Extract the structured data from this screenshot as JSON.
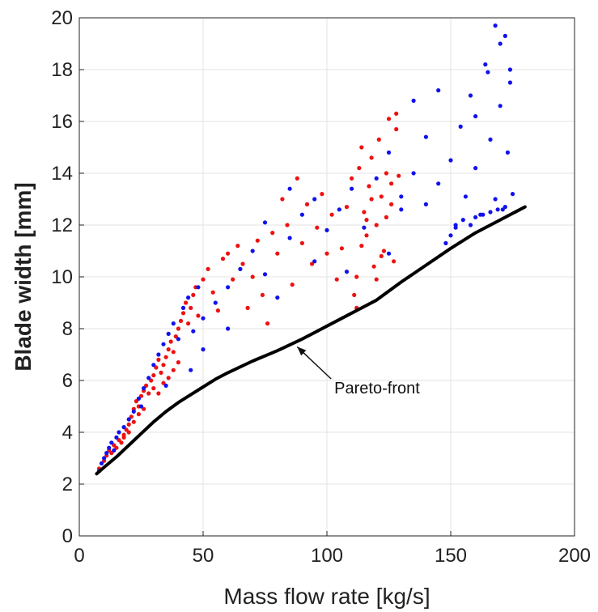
{
  "chart_data": {
    "type": "scatter",
    "title": "",
    "xlabel": "Mass flow rate [kg/s]",
    "ylabel": "Blade width [mm]",
    "xlim": [
      0,
      200
    ],
    "ylim": [
      0,
      20
    ],
    "xticks": [
      0,
      50,
      100,
      150,
      200
    ],
    "yticks": [
      0,
      2,
      4,
      6,
      8,
      10,
      12,
      14,
      16,
      18,
      20
    ],
    "grid": true,
    "colors": {
      "red": "#ee1111",
      "blue": "#1111ee",
      "front": "#000000"
    },
    "series": [
      {
        "color": "red",
        "points": [
          [
            8,
            2.6
          ],
          [
            10,
            2.9
          ],
          [
            11,
            3.1
          ],
          [
            12,
            3.3
          ],
          [
            13,
            3.2
          ],
          [
            14,
            3.5
          ],
          [
            15,
            3.4
          ],
          [
            16,
            3.7
          ],
          [
            17,
            3.6
          ],
          [
            18,
            3.9
          ],
          [
            19,
            4.1
          ],
          [
            20,
            4.3
          ],
          [
            21,
            4.6
          ],
          [
            22,
            4.9
          ],
          [
            23,
            5.2
          ],
          [
            24,
            5.0
          ],
          [
            25,
            5.4
          ],
          [
            26,
            5.6
          ],
          [
            27,
            5.8
          ],
          [
            28,
            5.5
          ],
          [
            29,
            6.0
          ],
          [
            30,
            6.2
          ],
          [
            31,
            6.5
          ],
          [
            32,
            6.8
          ],
          [
            33,
            6.3
          ],
          [
            34,
            6.6
          ],
          [
            35,
            6.9
          ],
          [
            36,
            7.2
          ],
          [
            37,
            7.5
          ],
          [
            38,
            7.1
          ],
          [
            39,
            7.7
          ],
          [
            40,
            8.0
          ],
          [
            41,
            8.3
          ],
          [
            42,
            8.6
          ],
          [
            43,
            9.0
          ],
          [
            44,
            8.2
          ],
          [
            45,
            8.8
          ],
          [
            46,
            9.3
          ],
          [
            47,
            9.6
          ],
          [
            48,
            8.5
          ],
          [
            50,
            9.9
          ],
          [
            52,
            10.3
          ],
          [
            54,
            9.4
          ],
          [
            56,
            8.7
          ],
          [
            58,
            10.7
          ],
          [
            60,
            10.9
          ],
          [
            62,
            9.9
          ],
          [
            64,
            11.2
          ],
          [
            66,
            10.5
          ],
          [
            68,
            8.8
          ],
          [
            70,
            10.0
          ],
          [
            72,
            11.4
          ],
          [
            74,
            9.3
          ],
          [
            76,
            8.2
          ],
          [
            78,
            11.7
          ],
          [
            80,
            10.9
          ],
          [
            82,
            13.0
          ],
          [
            84,
            12.0
          ],
          [
            86,
            9.7
          ],
          [
            88,
            13.8
          ],
          [
            90,
            11.3
          ],
          [
            92,
            12.8
          ],
          [
            94,
            10.5
          ],
          [
            96,
            11.9
          ],
          [
            98,
            13.2
          ],
          [
            100,
            10.9
          ],
          [
            102,
            12.4
          ],
          [
            104,
            9.9
          ],
          [
            106,
            11.1
          ],
          [
            108,
            12.7
          ],
          [
            110,
            13.8
          ],
          [
            111,
            9.3
          ],
          [
            112,
            8.8
          ],
          [
            113,
            14.2
          ],
          [
            114,
            15.0
          ],
          [
            115,
            12.5
          ],
          [
            116,
            11.6
          ],
          [
            117,
            13.5
          ],
          [
            118,
            14.6
          ],
          [
            119,
            10.4
          ],
          [
            120,
            12.0
          ],
          [
            121,
            15.3
          ],
          [
            122,
            13.1
          ],
          [
            123,
            11.0
          ],
          [
            124,
            14.0
          ],
          [
            125,
            16.1
          ],
          [
            126,
            12.8
          ],
          [
            127,
            10.6
          ],
          [
            128,
            15.7
          ],
          [
            129,
            13.9
          ],
          [
            112,
            10.0
          ],
          [
            114,
            11.2
          ],
          [
            116,
            12.2
          ],
          [
            118,
            13.0
          ],
          [
            120,
            9.9
          ],
          [
            122,
            10.8
          ],
          [
            124,
            12.3
          ],
          [
            126,
            13.6
          ],
          [
            128,
            16.3
          ],
          [
            30,
            5.7
          ],
          [
            32,
            5.5
          ],
          [
            34,
            5.9
          ],
          [
            36,
            6.1
          ],
          [
            38,
            6.4
          ],
          [
            40,
            6.7
          ],
          [
            26,
            4.9
          ],
          [
            24,
            4.7
          ],
          [
            22,
            4.4
          ],
          [
            20,
            4.0
          ],
          [
            18,
            3.8
          ]
        ]
      },
      {
        "color": "blue",
        "points": [
          [
            8,
            2.5
          ],
          [
            9,
            2.8
          ],
          [
            10,
            3.0
          ],
          [
            11,
            3.2
          ],
          [
            12,
            3.4
          ],
          [
            13,
            3.6
          ],
          [
            14,
            3.3
          ],
          [
            15,
            3.8
          ],
          [
            16,
            4.0
          ],
          [
            18,
            4.2
          ],
          [
            20,
            4.5
          ],
          [
            22,
            4.8
          ],
          [
            24,
            5.3
          ],
          [
            26,
            5.7
          ],
          [
            28,
            6.1
          ],
          [
            30,
            6.6
          ],
          [
            32,
            7.0
          ],
          [
            34,
            7.4
          ],
          [
            36,
            7.8
          ],
          [
            38,
            8.2
          ],
          [
            40,
            7.6
          ],
          [
            42,
            8.8
          ],
          [
            44,
            9.2
          ],
          [
            46,
            7.9
          ],
          [
            48,
            9.6
          ],
          [
            50,
            8.4
          ],
          [
            55,
            9.0
          ],
          [
            60,
            9.6
          ],
          [
            65,
            10.3
          ],
          [
            70,
            11.0
          ],
          [
            75,
            10.1
          ],
          [
            80,
            9.2
          ],
          [
            85,
            11.5
          ],
          [
            90,
            12.4
          ],
          [
            95,
            13.0
          ],
          [
            100,
            11.8
          ],
          [
            105,
            12.6
          ],
          [
            110,
            13.4
          ],
          [
            115,
            11.9
          ],
          [
            120,
            13.8
          ],
          [
            125,
            14.8
          ],
          [
            130,
            12.6
          ],
          [
            135,
            14.0
          ],
          [
            140,
            12.8
          ],
          [
            145,
            13.6
          ],
          [
            150,
            14.5
          ],
          [
            152,
            12.0
          ],
          [
            154,
            15.8
          ],
          [
            156,
            13.1
          ],
          [
            158,
            17.0
          ],
          [
            160,
            14.2
          ],
          [
            162,
            12.4
          ],
          [
            164,
            18.2
          ],
          [
            166,
            15.3
          ],
          [
            168,
            13.0
          ],
          [
            170,
            16.6
          ],
          [
            171,
            12.6
          ],
          [
            172,
            19.3
          ],
          [
            173,
            14.8
          ],
          [
            174,
            17.5
          ],
          [
            175,
            13.2
          ],
          [
            148,
            11.3
          ],
          [
            150,
            11.6
          ],
          [
            152,
            11.9
          ],
          [
            155,
            12.2
          ],
          [
            158,
            12.0
          ],
          [
            160,
            12.3
          ],
          [
            163,
            12.4
          ],
          [
            166,
            12.5
          ],
          [
            169,
            12.6
          ],
          [
            172,
            12.7
          ],
          [
            160,
            16.2
          ],
          [
            165,
            17.9
          ],
          [
            170,
            19.0
          ],
          [
            140,
            15.4
          ],
          [
            145,
            17.2
          ],
          [
            135,
            16.8
          ],
          [
            130,
            13.1
          ],
          [
            125,
            10.9
          ],
          [
            108,
            10.2
          ],
          [
            95,
            10.6
          ],
          [
            85,
            13.4
          ],
          [
            75,
            12.1
          ],
          [
            60,
            8.0
          ],
          [
            50,
            7.2
          ],
          [
            45,
            6.4
          ],
          [
            35,
            5.8
          ],
          [
            25,
            5.0
          ],
          [
            168,
            19.7
          ],
          [
            174,
            18.0
          ]
        ]
      }
    ],
    "pareto_front": {
      "label": "Pareto-front",
      "x": [
        7,
        10,
        15,
        20,
        25,
        30,
        35,
        40,
        45,
        50,
        55,
        60,
        70,
        80,
        90,
        100,
        110,
        120,
        130,
        140,
        150,
        160,
        170,
        180
      ],
      "y": [
        2.4,
        2.65,
        3.05,
        3.5,
        3.95,
        4.4,
        4.8,
        5.15,
        5.45,
        5.75,
        6.05,
        6.3,
        6.75,
        7.15,
        7.6,
        8.1,
        8.6,
        9.1,
        9.8,
        10.45,
        11.1,
        11.7,
        12.2,
        12.7
      ],
      "annotation": {
        "text": "Pareto-front",
        "text_at": [
          103,
          5.5
        ],
        "arrow_to": [
          88,
          7.3
        ]
      }
    }
  }
}
